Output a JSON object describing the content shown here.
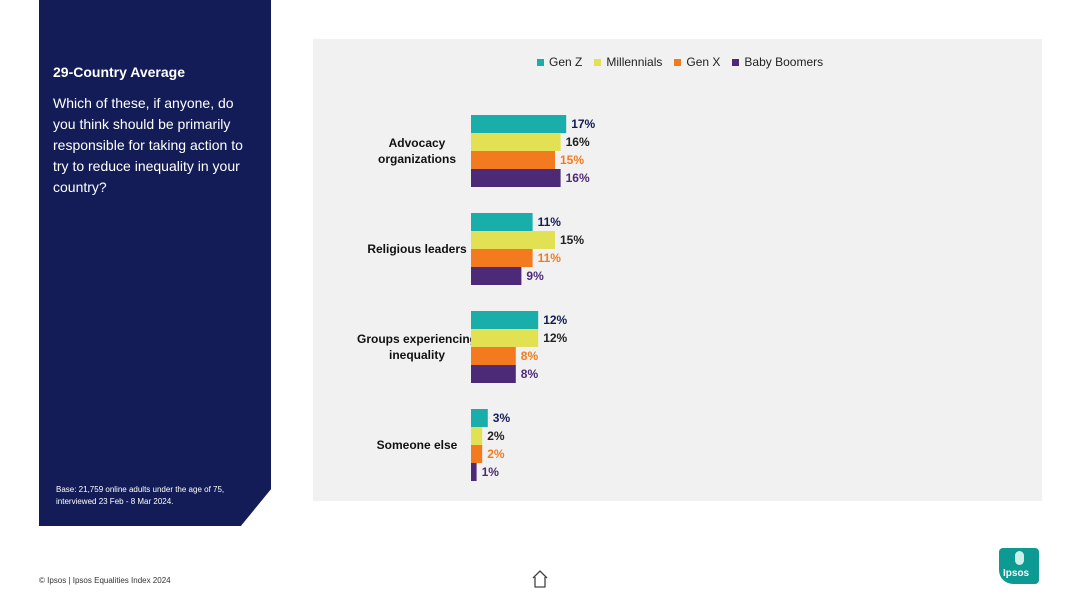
{
  "sidebar": {
    "title": "29-Country Average",
    "question": "Which of these, if anyone, do you think should be primarily responsible for taking action to try to reduce inequality in your country?",
    "base": "Base: 21,759 online adults under the age of 75, interviewed 23 Feb - 8 Mar 2024."
  },
  "footer": {
    "text": "© Ipsos | Ipsos Equalities Index 2024"
  },
  "logo": {
    "text": "Ipsos"
  },
  "chart_data": {
    "type": "bar",
    "orientation": "horizontal",
    "categories": [
      "Advocacy organizations",
      "Religious leaders",
      "Groups experiencing inequality",
      "Someone else"
    ],
    "series": [
      {
        "name": "Gen Z",
        "color": "#1aaeab",
        "label_color": "#131c56",
        "values": [
          17,
          11,
          12,
          3
        ]
      },
      {
        "name": "Millennials",
        "color": "#e2e154",
        "label_color": "#222222",
        "values": [
          16,
          15,
          12,
          2
        ]
      },
      {
        "name": "Gen X",
        "color": "#f47a20",
        "label_color": "#f47a20",
        "values": [
          15,
          11,
          8,
          2
        ]
      },
      {
        "name": "Baby Boomers",
        "color": "#4d2a78",
        "label_color": "#4d2a78",
        "values": [
          16,
          9,
          8,
          1
        ]
      }
    ],
    "value_suffix": "%",
    "legend_position": "top",
    "grid": false
  }
}
